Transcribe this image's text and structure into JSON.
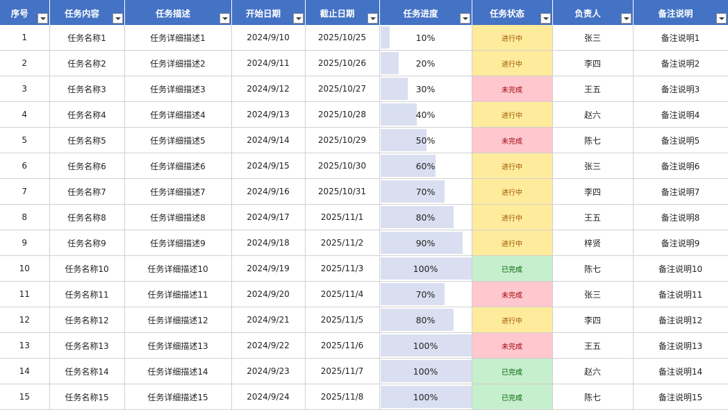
{
  "headers": [
    "序号",
    "任务内容",
    "任务描述",
    "开始日期",
    "截止日期",
    "任务进度",
    "任务状态",
    "负责人",
    "备注说明"
  ],
  "status_colors": {
    "进行中": {
      "bg": "#ffeb9c",
      "fg": "#9c5700"
    },
    "未完成": {
      "bg": "#ffc7ce",
      "fg": "#9c0006"
    },
    "已完成": {
      "bg": "#c6efce",
      "fg": "#006100"
    }
  },
  "rows": [
    {
      "id": "1",
      "task": "任务名称1",
      "desc": "任务详细描述1",
      "start": "2024/9/10",
      "end": "2025/10/25",
      "progress": 10,
      "progress_label": "10%",
      "status": "进行中",
      "owner": "张三",
      "note": "备注说明1"
    },
    {
      "id": "2",
      "task": "任务名称2",
      "desc": "任务详细描述2",
      "start": "2024/9/11",
      "end": "2025/10/26",
      "progress": 20,
      "progress_label": "20%",
      "status": "进行中",
      "owner": "李四",
      "note": "备注说明2"
    },
    {
      "id": "3",
      "task": "任务名称3",
      "desc": "任务详细描述3",
      "start": "2024/9/12",
      "end": "2025/10/27",
      "progress": 30,
      "progress_label": "30%",
      "status": "未完成",
      "owner": "王五",
      "note": "备注说明3"
    },
    {
      "id": "4",
      "task": "任务名称4",
      "desc": "任务详细描述4",
      "start": "2024/9/13",
      "end": "2025/10/28",
      "progress": 40,
      "progress_label": "40%",
      "status": "进行中",
      "owner": "赵六",
      "note": "备注说明4"
    },
    {
      "id": "5",
      "task": "任务名称5",
      "desc": "任务详细描述5",
      "start": "2024/9/14",
      "end": "2025/10/29",
      "progress": 50,
      "progress_label": "50%",
      "status": "未完成",
      "owner": "陈七",
      "note": "备注说明5"
    },
    {
      "id": "6",
      "task": "任务名称6",
      "desc": "任务详细描述6",
      "start": "2024/9/15",
      "end": "2025/10/30",
      "progress": 60,
      "progress_label": "60%",
      "status": "进行中",
      "owner": "张三",
      "note": "备注说明6"
    },
    {
      "id": "7",
      "task": "任务名称7",
      "desc": "任务详细描述7",
      "start": "2024/9/16",
      "end": "2025/10/31",
      "progress": 70,
      "progress_label": "70%",
      "status": "进行中",
      "owner": "李四",
      "note": "备注说明7"
    },
    {
      "id": "8",
      "task": "任务名称8",
      "desc": "任务详细描述8",
      "start": "2024/9/17",
      "end": "2025/11/1",
      "progress": 80,
      "progress_label": "80%",
      "status": "进行中",
      "owner": "王五",
      "note": "备注说明8"
    },
    {
      "id": "9",
      "task": "任务名称9",
      "desc": "任务详细描述9",
      "start": "2024/9/18",
      "end": "2025/11/2",
      "progress": 90,
      "progress_label": "90%",
      "status": "进行中",
      "owner": "梓贤",
      "note": "备注说明9"
    },
    {
      "id": "10",
      "task": "任务名称10",
      "desc": "任务详细描述10",
      "start": "2024/9/19",
      "end": "2025/11/3",
      "progress": 100,
      "progress_label": "100%",
      "status": "已完成",
      "owner": "陈七",
      "note": "备注说明10"
    },
    {
      "id": "11",
      "task": "任务名称11",
      "desc": "任务详细描述11",
      "start": "2024/9/20",
      "end": "2025/11/4",
      "progress": 70,
      "progress_label": "70%",
      "status": "未完成",
      "owner": "张三",
      "note": "备注说明11"
    },
    {
      "id": "12",
      "task": "任务名称12",
      "desc": "任务详细描述12",
      "start": "2024/9/21",
      "end": "2025/11/5",
      "progress": 80,
      "progress_label": "80%",
      "status": "进行中",
      "owner": "李四",
      "note": "备注说明12"
    },
    {
      "id": "13",
      "task": "任务名称13",
      "desc": "任务详细描述13",
      "start": "2024/9/22",
      "end": "2025/11/6",
      "progress": 100,
      "progress_label": "100%",
      "status": "未完成",
      "owner": "王五",
      "note": "备注说明13"
    },
    {
      "id": "14",
      "task": "任务名称14",
      "desc": "任务详细描述14",
      "start": "2024/9/23",
      "end": "2025/11/7",
      "progress": 100,
      "progress_label": "100%",
      "status": "已完成",
      "owner": "赵六",
      "note": "备注说明14"
    },
    {
      "id": "15",
      "task": "任务名称15",
      "desc": "任务详细描述15",
      "start": "2024/9/24",
      "end": "2025/11/8",
      "progress": 100,
      "progress_label": "100%",
      "status": "已完成",
      "owner": "陈七",
      "note": "备注说明15"
    }
  ]
}
